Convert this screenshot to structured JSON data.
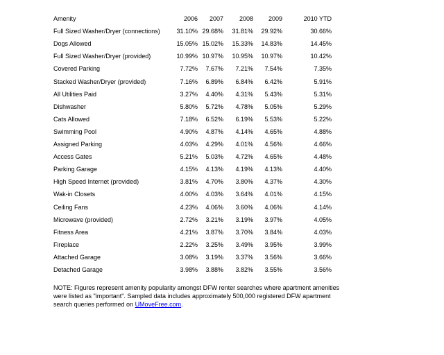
{
  "table": {
    "headers": [
      "Amenity",
      "2006",
      "2007",
      "2008",
      "2009",
      "2010 YTD"
    ],
    "rows": [
      [
        "Full Sized Washer/Dryer (connections)",
        "31.10%",
        "29.68%",
        "31.81%",
        "29.92%",
        "30.66%"
      ],
      [
        "Dogs Allowed",
        "15.05%",
        "15.02%",
        "15.33%",
        "14.83%",
        "14.45%"
      ],
      [
        "Full Sized Washer/Dryer (provided)",
        "10.99%",
        "10.97%",
        "10.95%",
        "10.97%",
        "10.42%"
      ],
      [
        "Covered Parking",
        "7.72%",
        "7.67%",
        "7.21%",
        "7.54%",
        "7.35%"
      ],
      [
        "Stacked Washer/Dryer (provided)",
        "7.16%",
        "6.89%",
        "6.84%",
        "6.42%",
        "5.91%"
      ],
      [
        "All Utilities Paid",
        "3.27%",
        "4.40%",
        "4.31%",
        "5.43%",
        "5.31%"
      ],
      [
        "Dishwasher",
        "5.80%",
        "5.72%",
        "4.78%",
        "5.05%",
        "5.29%"
      ],
      [
        "Cats Allowed",
        "7.18%",
        "6.52%",
        "6.19%",
        "5.53%",
        "5.22%"
      ],
      [
        "Swimming Pool",
        "4.90%",
        "4.87%",
        "4.14%",
        "4.65%",
        "4.88%"
      ],
      [
        "Assigned Parking",
        "4.03%",
        "4.29%",
        "4.01%",
        "4.56%",
        "4.66%"
      ],
      [
        "Access Gates",
        "5.21%",
        "5.03%",
        "4.72%",
        "4.65%",
        "4.48%"
      ],
      [
        "Parking Garage",
        "4.15%",
        "4.13%",
        "4.19%",
        "4.13%",
        "4.40%"
      ],
      [
        "High Speed Internet (provided)",
        "3.81%",
        "4.70%",
        "3.80%",
        "4.37%",
        "4.30%"
      ],
      [
        "Wak-in Closets",
        "4.00%",
        "4.03%",
        "3.64%",
        "4.01%",
        "4.15%"
      ],
      [
        "Ceiling Fans",
        "4.23%",
        "4.06%",
        "3.60%",
        "4.06%",
        "4.14%"
      ],
      [
        "Microwave (provided)",
        "2.72%",
        "3.21%",
        "3.19%",
        "3.97%",
        "4.05%"
      ],
      [
        "Fitness Area",
        "4.21%",
        "3.87%",
        "3.70%",
        "3.84%",
        "4.03%"
      ],
      [
        "Fireplace",
        "2.22%",
        "3.25%",
        "3.49%",
        "3.95%",
        "3.99%"
      ],
      [
        "Attached Garage",
        "3.08%",
        "3.19%",
        "3.37%",
        "3.56%",
        "3.66%"
      ],
      [
        "Detached Garage",
        "3.98%",
        "3.88%",
        "3.82%",
        "3.55%",
        "3.56%"
      ]
    ]
  },
  "note": {
    "text": "NOTE:  Figures represent amenity popularity amongst DFW renter searches where apartment amenities were listed as \"important\".  Sampled data includes approximately 500,000 registered DFW apartment search queries performed on ",
    "link": "UMoveFree.com",
    "end": ".",
    "link_color": "#0000ee"
  }
}
